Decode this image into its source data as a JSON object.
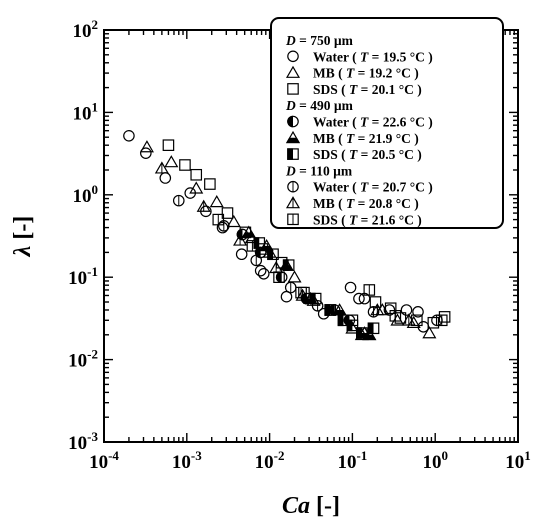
{
  "chart_data": {
    "type": "scatter",
    "x_scale": "log",
    "y_scale": "log",
    "xlim": [
      0.0001,
      10
    ],
    "ylim": [
      0.001,
      100
    ],
    "grid": false,
    "legend_position": "top-right",
    "xlabel": {
      "main": "Ca",
      "suffix": "[-]"
    },
    "ylabel": {
      "main": "λ",
      "suffix": "[-]"
    },
    "x_ticks": [
      {
        "value": 0.0001,
        "base": "10",
        "exp": "-4"
      },
      {
        "value": 0.001,
        "base": "10",
        "exp": "-3"
      },
      {
        "value": 0.01,
        "base": "10",
        "exp": "-2"
      },
      {
        "value": 0.1,
        "base": "10",
        "exp": "-1"
      },
      {
        "value": 1,
        "base": "10",
        "exp": "0"
      },
      {
        "value": 10,
        "base": "10",
        "exp": "1"
      }
    ],
    "y_ticks": [
      {
        "value": 0.001,
        "base": "10",
        "exp": "-3"
      },
      {
        "value": 0.01,
        "base": "10",
        "exp": "-2"
      },
      {
        "value": 0.1,
        "base": "10",
        "exp": "-1"
      },
      {
        "value": 1,
        "base": "10",
        "exp": "0"
      },
      {
        "value": 10,
        "base": "10",
        "exp": "1"
      },
      {
        "value": 100,
        "base": "10",
        "exp": "2"
      }
    ],
    "groups": [
      {
        "label_var": "D",
        "label_rest": " = 750 µm",
        "fill": "open"
      },
      {
        "label_var": "D",
        "label_rest": " = 490 µm",
        "fill": "half"
      },
      {
        "label_var": "D",
        "label_rest": " = 110 µm",
        "fill": "line"
      }
    ],
    "series": [
      {
        "name_pre": "Water ( ",
        "name_var": "T",
        "name_post": " = 19.5 °C )",
        "marker": "circle",
        "fill": "open",
        "group": 0,
        "points": [
          [
            0.0002,
            5.2
          ],
          [
            0.00032,
            3.2
          ],
          [
            0.00055,
            1.6
          ],
          [
            0.0011,
            1.05
          ],
          [
            0.0017,
            0.63
          ],
          [
            0.0027,
            0.4
          ],
          [
            0.0046,
            0.19
          ],
          [
            0.0078,
            0.12
          ],
          [
            0.0085,
            0.11
          ],
          [
            0.016,
            0.058
          ],
          [
            0.045,
            0.036
          ],
          [
            0.095,
            0.075
          ],
          [
            0.12,
            0.055
          ],
          [
            0.14,
            0.055
          ],
          [
            0.28,
            0.04
          ],
          [
            0.45,
            0.04
          ],
          [
            0.62,
            0.038
          ],
          [
            0.72,
            0.025
          ],
          [
            1.05,
            0.03
          ]
        ]
      },
      {
        "name_pre": "MB ( ",
        "name_var": "T",
        "name_post": " = 19.2 °C )",
        "marker": "triangle",
        "fill": "open",
        "group": 0,
        "points": [
          [
            0.00033,
            3.8
          ],
          [
            0.00065,
            2.5
          ],
          [
            0.0013,
            1.2
          ],
          [
            0.0023,
            0.82
          ],
          [
            0.0037,
            0.47
          ],
          [
            0.0061,
            0.3
          ],
          [
            0.01,
            0.2
          ],
          [
            0.02,
            0.1
          ],
          [
            0.034,
            0.052
          ],
          [
            0.1,
            0.024
          ],
          [
            0.13,
            0.02
          ],
          [
            0.23,
            0.04
          ],
          [
            0.35,
            0.03
          ],
          [
            0.55,
            0.028
          ],
          [
            0.85,
            0.021
          ]
        ]
      },
      {
        "name_pre": "SDS ( ",
        "name_var": "T",
        "name_post": " = 20.1 °C )",
        "marker": "square",
        "fill": "open",
        "group": 0,
        "points": [
          [
            0.0006,
            4
          ],
          [
            0.00095,
            2.3
          ],
          [
            0.0013,
            1.75
          ],
          [
            0.0019,
            1.35
          ],
          [
            0.0031,
            0.6
          ],
          [
            0.0051,
            0.35
          ],
          [
            0.0082,
            0.22
          ],
          [
            0.014,
            0.15
          ],
          [
            0.026,
            0.065
          ],
          [
            0.054,
            0.04
          ],
          [
            0.1,
            0.03
          ],
          [
            0.19,
            0.05
          ],
          [
            0.29,
            0.042
          ],
          [
            0.38,
            0.032
          ],
          [
            0.6,
            0.03
          ],
          [
            0.95,
            0.028
          ],
          [
            1.3,
            0.033
          ]
        ]
      },
      {
        "name_pre": "Water ( ",
        "name_var": "T",
        "name_post": " = 22.6 °C )",
        "marker": "circle",
        "fill": "half",
        "group": 1,
        "points": [
          [
            0.0047,
            0.33
          ],
          [
            0.0078,
            0.2
          ],
          [
            0.014,
            0.1
          ],
          [
            0.028,
            0.055
          ],
          [
            0.061,
            0.04
          ],
          [
            0.092,
            0.03
          ]
        ]
      },
      {
        "name_pre": "MB ( ",
        "name_var": "T",
        "name_post": " = 21.9 °C )",
        "marker": "triangle",
        "fill": "half",
        "group": 1,
        "points": [
          [
            0.0056,
            0.35
          ],
          [
            0.0092,
            0.24
          ],
          [
            0.016,
            0.14
          ],
          [
            0.031,
            0.055
          ],
          [
            0.07,
            0.04
          ],
          [
            0.14,
            0.021
          ],
          [
            0.16,
            0.02
          ]
        ]
      },
      {
        "name_pre": "SDS ( ",
        "name_var": "T",
        "name_post": " = 20.5 °C )",
        "marker": "square",
        "fill": "half",
        "group": 1,
        "points": [
          [
            0.0075,
            0.26
          ],
          [
            0.011,
            0.19
          ],
          [
            0.017,
            0.14
          ],
          [
            0.036,
            0.055
          ],
          [
            0.054,
            0.04
          ],
          [
            0.078,
            0.03
          ],
          [
            0.1,
            0.026
          ],
          [
            0.13,
            0.021
          ],
          [
            0.18,
            0.024
          ]
        ]
      },
      {
        "name_pre": "Water ( ",
        "name_var": "T",
        "name_post": " = 20.7 °C )",
        "marker": "circle",
        "fill": "line",
        "group": 2,
        "points": [
          [
            0.0008,
            0.85
          ],
          [
            0.0028,
            0.42
          ],
          [
            0.0069,
            0.16
          ],
          [
            0.018,
            0.075
          ],
          [
            0.038,
            0.045
          ],
          [
            0.18,
            0.038
          ]
        ]
      },
      {
        "name_pre": "MB ( ",
        "name_var": "T",
        "name_post": " = 20.8 °C )",
        "marker": "triangle",
        "fill": "line",
        "group": 2,
        "points": [
          [
            0.0005,
            2.1
          ],
          [
            0.0016,
            0.72
          ],
          [
            0.0044,
            0.28
          ],
          [
            0.012,
            0.13
          ],
          [
            0.025,
            0.06
          ],
          [
            0.2,
            0.04
          ],
          [
            0.48,
            0.03
          ]
        ]
      },
      {
        "name_pre": "SDS ( ",
        "name_var": "T",
        "name_post": " = 21.6 °C )",
        "marker": "square",
        "fill": "line",
        "group": 2,
        "points": [
          [
            0.0024,
            0.5
          ],
          [
            0.0062,
            0.24
          ],
          [
            0.013,
            0.1
          ],
          [
            0.024,
            0.065
          ],
          [
            0.16,
            0.07
          ],
          [
            0.33,
            0.034
          ],
          [
            1.2,
            0.03
          ]
        ]
      }
    ]
  }
}
